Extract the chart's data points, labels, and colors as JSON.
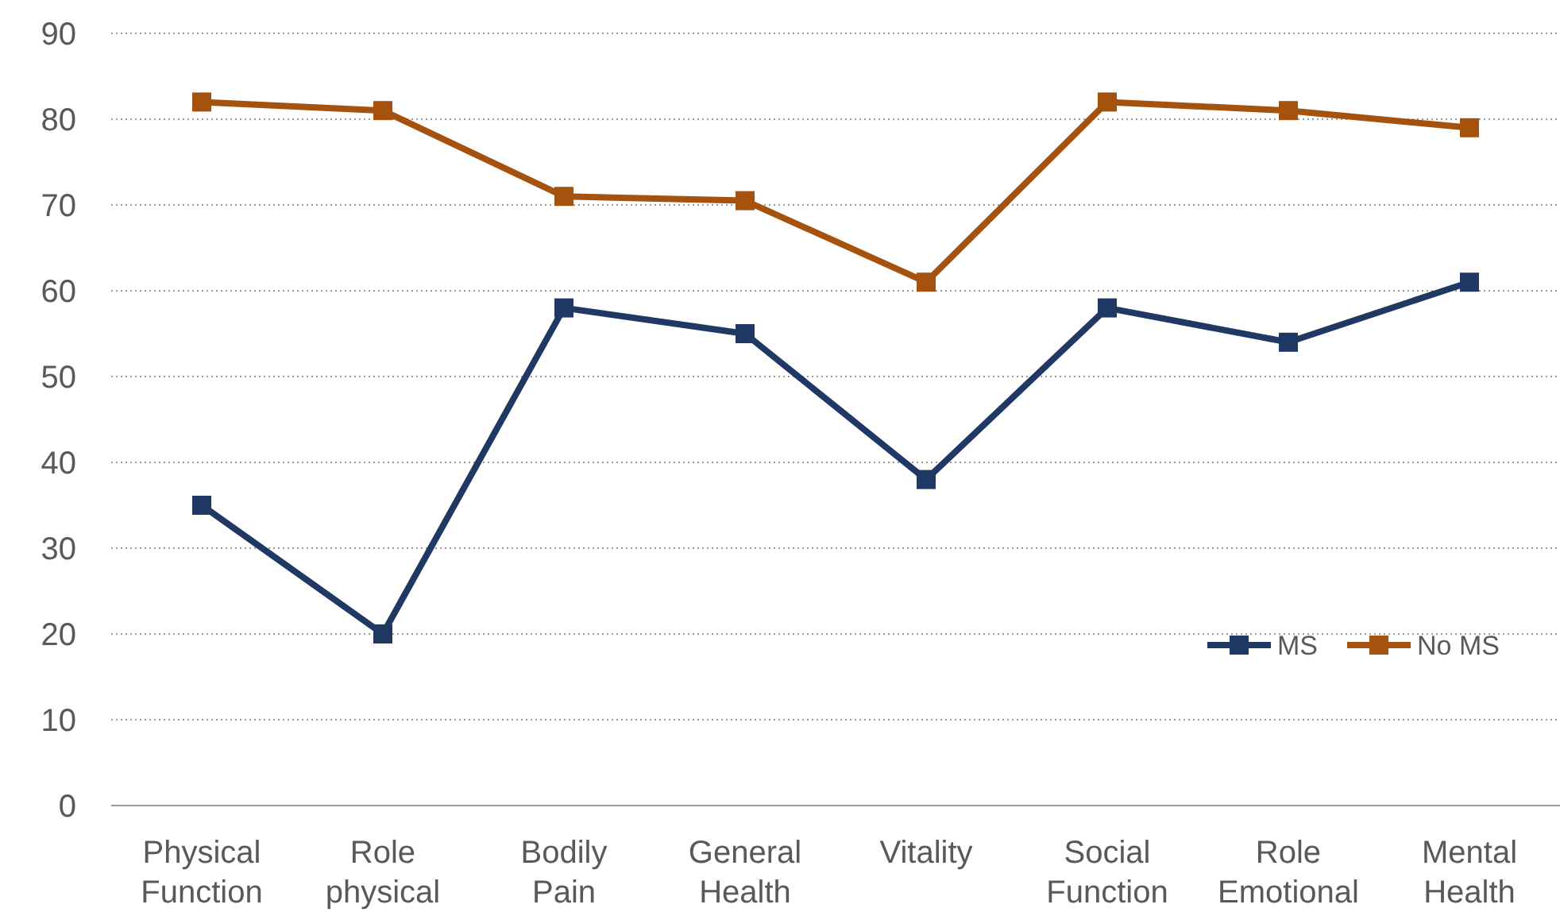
{
  "chart_data": {
    "type": "line",
    "categories": [
      "Physical Function",
      "Role physical",
      "Bodily Pain",
      "General Health",
      "Vitality",
      "Social Function",
      "Role Emotional",
      "Mental Health"
    ],
    "series": [
      {
        "name": "MS",
        "color": "#1f3864",
        "values": [
          35,
          20,
          58,
          55,
          38,
          58,
          54,
          61
        ]
      },
      {
        "name": "No MS",
        "color": "#a5520f",
        "values": [
          82,
          81,
          71,
          70.5,
          61,
          82,
          81,
          79
        ]
      }
    ],
    "ylim": [
      0,
      90
    ],
    "yticks": [
      0,
      10,
      20,
      30,
      40,
      50,
      60,
      70,
      80,
      90
    ],
    "grid": "y",
    "legend": "bottom right",
    "marker": "square",
    "line_style": "solid"
  }
}
